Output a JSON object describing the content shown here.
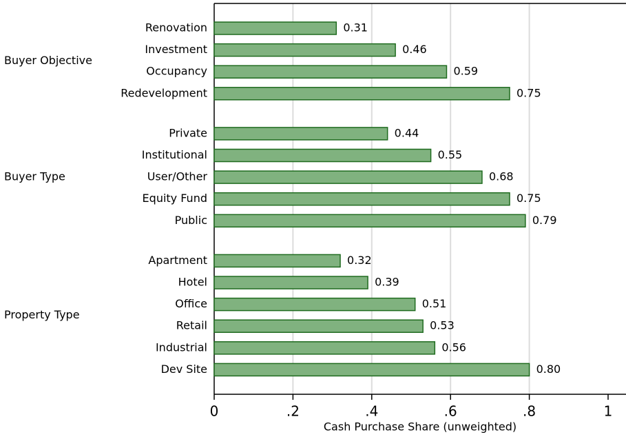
{
  "chart_data": {
    "type": "grouped-hbar",
    "xlabel": "Cash Purchase Share (unweighted)",
    "color": "#80b27f",
    "edgecolor": "#1f6b1f",
    "groups": [
      {
        "name": "Buyer Objective",
        "categories": [
          "Renovation",
          "Investment",
          "Occupancy",
          "Redevelopment"
        ],
        "values": [
          0.31,
          0.46,
          0.59,
          0.75
        ],
        "value_labels": [
          "0.31",
          "0.46",
          "0.59",
          "0.75"
        ]
      },
      {
        "name": "Buyer Type",
        "categories": [
          "Private",
          "Institutional",
          "User/Other",
          "Equity Fund",
          "Public"
        ],
        "values": [
          0.44,
          0.55,
          0.68,
          0.75,
          0.79
        ],
        "value_labels": [
          "0.44",
          "0.55",
          "0.68",
          "0.75",
          "0.79"
        ]
      },
      {
        "name": "Property Type",
        "categories": [
          "Apartment",
          "Hotel",
          "Office",
          "Retail",
          "Industrial",
          "Dev Site"
        ],
        "values": [
          0.32,
          0.39,
          0.51,
          0.53,
          0.56,
          0.8
        ],
        "value_labels": [
          "0.32",
          "0.39",
          "0.51",
          "0.53",
          "0.56",
          "0.80"
        ]
      }
    ],
    "xlim": [
      0,
      1
    ],
    "xticks": [
      0,
      {
        "value": 0.2,
        "label": ".2"
      },
      {
        "value": 0.4,
        "label": ".4"
      },
      {
        "value": 0.6,
        "label": ".6"
      },
      {
        "value": 0.8,
        "label": ".8"
      },
      1
    ],
    "grid": true
  }
}
